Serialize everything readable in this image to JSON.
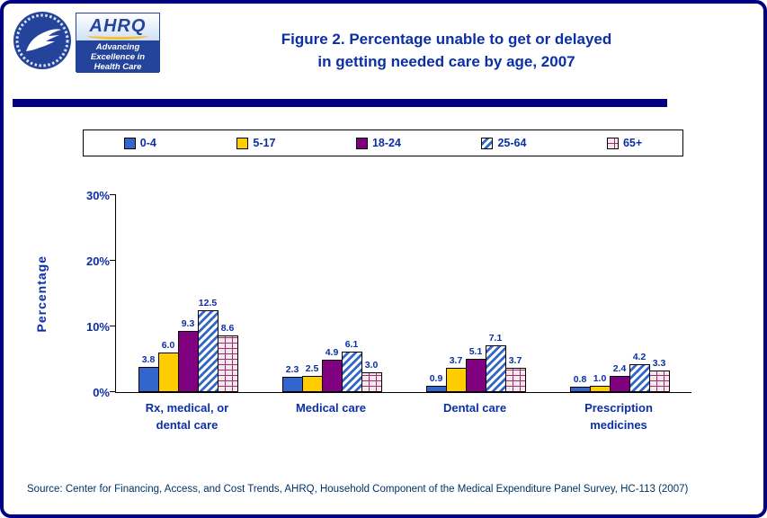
{
  "page": {
    "title_line1": "Figure 2. Percentage unable to get or delayed",
    "title_line2": "in getting needed care by age, 2007",
    "source": "Source: Center for Financing, Access, and Cost Trends, AHRQ, Household Component of the Medical Expenditure Panel Survey, HC-113 (2007)"
  },
  "logo": {
    "ahrq": "AHRQ",
    "tagline_line1": "Advancing",
    "tagline_line2": "Excellence in",
    "tagline_line3": "Health Care"
  },
  "colors": {
    "navy_border": "#000080",
    "title_blue": "#0B2FA5",
    "series_0_4": "#3366CC",
    "series_5_17": "#FFCC00",
    "series_18_24": "#800080",
    "series_25_64_stripe": "#3366CC",
    "series_65_plus_line": "#993366",
    "series_65_plus_bg": "#F6E6F2"
  },
  "chart_data": {
    "type": "bar",
    "title": "Figure 2. Percentage unable to get or delayed in getting needed care by age, 2007",
    "categories": [
      "Rx, medical, or dental care",
      "Medical care",
      "Dental care",
      "Prescription medicines"
    ],
    "series": [
      {
        "name": "0-4",
        "pattern": "solid",
        "color": "#3366CC",
        "values": [
          3.8,
          2.3,
          0.9,
          0.8
        ]
      },
      {
        "name": "5-17",
        "pattern": "solid",
        "color": "#FFCC00",
        "values": [
          6.0,
          2.5,
          3.7,
          1.0
        ]
      },
      {
        "name": "18-24",
        "pattern": "solid",
        "color": "#800080",
        "values": [
          9.3,
          4.9,
          5.1,
          2.4
        ]
      },
      {
        "name": "25-64",
        "pattern": "diagonal",
        "color": "#3366CC",
        "values": [
          12.5,
          6.1,
          7.1,
          4.2
        ]
      },
      {
        "name": "65+",
        "pattern": "brick",
        "color": "#F6E6F2",
        "values": [
          8.6,
          3.0,
          3.7,
          3.3
        ]
      }
    ],
    "xlabel": "",
    "ylabel": "Percentage",
    "yticks": [
      "0%",
      "10%",
      "20%",
      "30%"
    ],
    "ylim": [
      0,
      30
    ],
    "grid": false,
    "legend_position": "top",
    "value_labels": true
  }
}
